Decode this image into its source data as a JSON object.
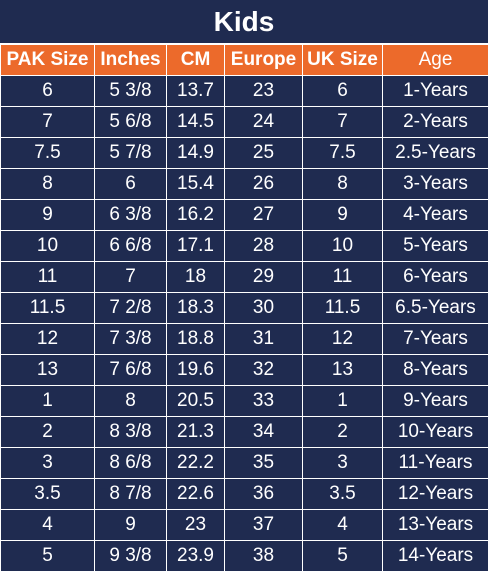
{
  "title": "Kids",
  "headers": [
    "PAK Size",
    "Inches",
    "CM",
    "Europe",
    "UK Size",
    "Age"
  ],
  "rows": [
    [
      "6",
      "5 3/8",
      "13.7",
      "23",
      "6",
      "1-Years"
    ],
    [
      "7",
      "5 6/8",
      "14.5",
      "24",
      "7",
      "2-Years"
    ],
    [
      "7.5",
      "5 7/8",
      "14.9",
      "25",
      "7.5",
      "2.5-Years"
    ],
    [
      "8",
      "6",
      "15.4",
      "26",
      "8",
      "3-Years"
    ],
    [
      "9",
      "6 3/8",
      "16.2",
      "27",
      "9",
      "4-Years"
    ],
    [
      "10",
      "6 6/8",
      "17.1",
      "28",
      "10",
      "5-Years"
    ],
    [
      "11",
      "7",
      "18",
      "29",
      "11",
      "6-Years"
    ],
    [
      "11.5",
      "7 2/8",
      "18.3",
      "30",
      "11.5",
      "6.5-Years"
    ],
    [
      "12",
      "7 3/8",
      "18.8",
      "31",
      "12",
      "7-Years"
    ],
    [
      "13",
      "7 6/8",
      "19.6",
      "32",
      "13",
      "8-Years"
    ],
    [
      "1",
      "8",
      "20.5",
      "33",
      "1",
      "9-Years"
    ],
    [
      "2",
      "8 3/8",
      "21.3",
      "34",
      "2",
      "10-Years"
    ],
    [
      "3",
      "8 6/8",
      "22.2",
      "35",
      "3",
      "11-Years"
    ],
    [
      "3.5",
      "8 7/8",
      "22.6",
      "36",
      "3.5",
      "12-Years"
    ],
    [
      "4",
      "9",
      "23",
      "37",
      "4",
      "13-Years"
    ],
    [
      "5",
      "9 3/8",
      "23.9",
      "38",
      "5",
      "14-Years"
    ]
  ],
  "colors": {
    "header_bg": "#ec6a2b",
    "body_bg": "#1f2b50",
    "text": "#ffffff"
  }
}
